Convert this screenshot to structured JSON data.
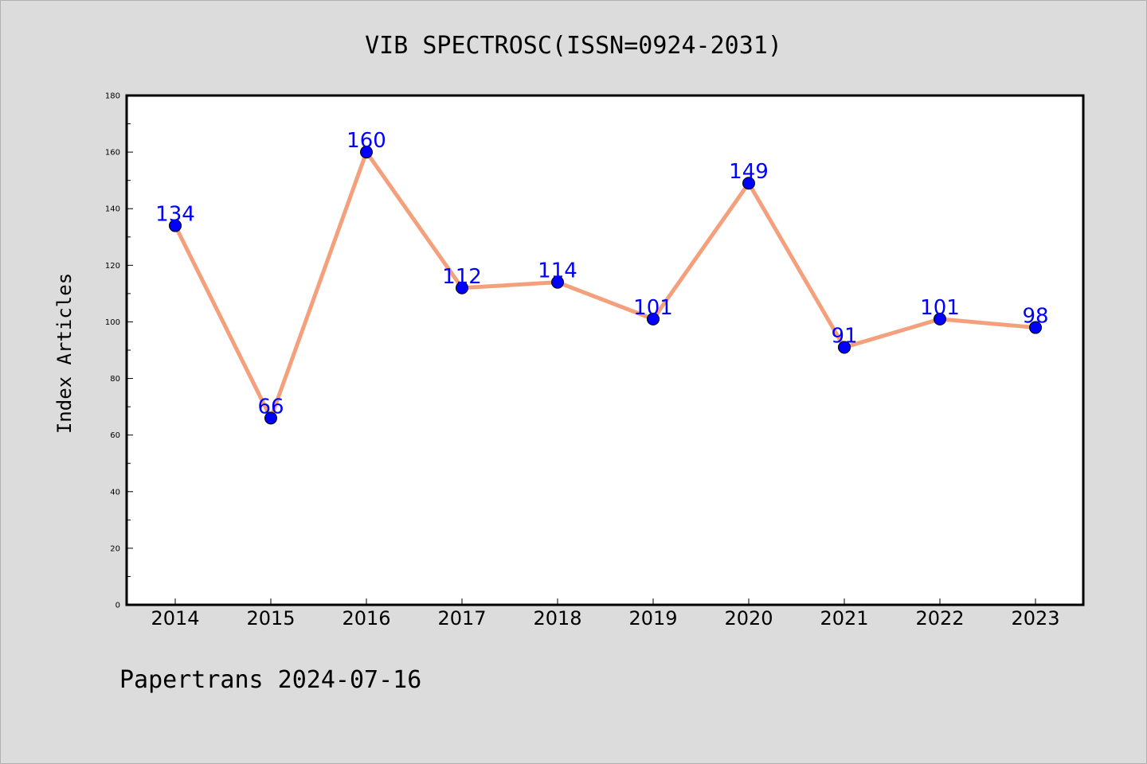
{
  "footer": {
    "text": "Papertrans 2024-07-16"
  },
  "chart_data": {
    "type": "line",
    "title": "VIB SPECTROSC(ISSN=0924-2031)",
    "xlabel": "",
    "ylabel": "Index Articles",
    "categories": [
      "2014",
      "2015",
      "2016",
      "2017",
      "2018",
      "2019",
      "2020",
      "2021",
      "2022",
      "2023"
    ],
    "series": [
      {
        "values": [
          134,
          66,
          160,
          112,
          114,
          101,
          149,
          91,
          101,
          98
        ],
        "data_labels": [
          "134",
          "66",
          "160",
          "112",
          "114",
          "101",
          "149",
          "91",
          "101",
          "98"
        ],
        "line_color": "#f4a07c",
        "marker_color": "#0000ff"
      }
    ],
    "ylim": [
      0,
      180
    ],
    "yticks": [
      0,
      20,
      40,
      60,
      80,
      100,
      120,
      140,
      160,
      180
    ],
    "grid": false,
    "legend": "none"
  }
}
